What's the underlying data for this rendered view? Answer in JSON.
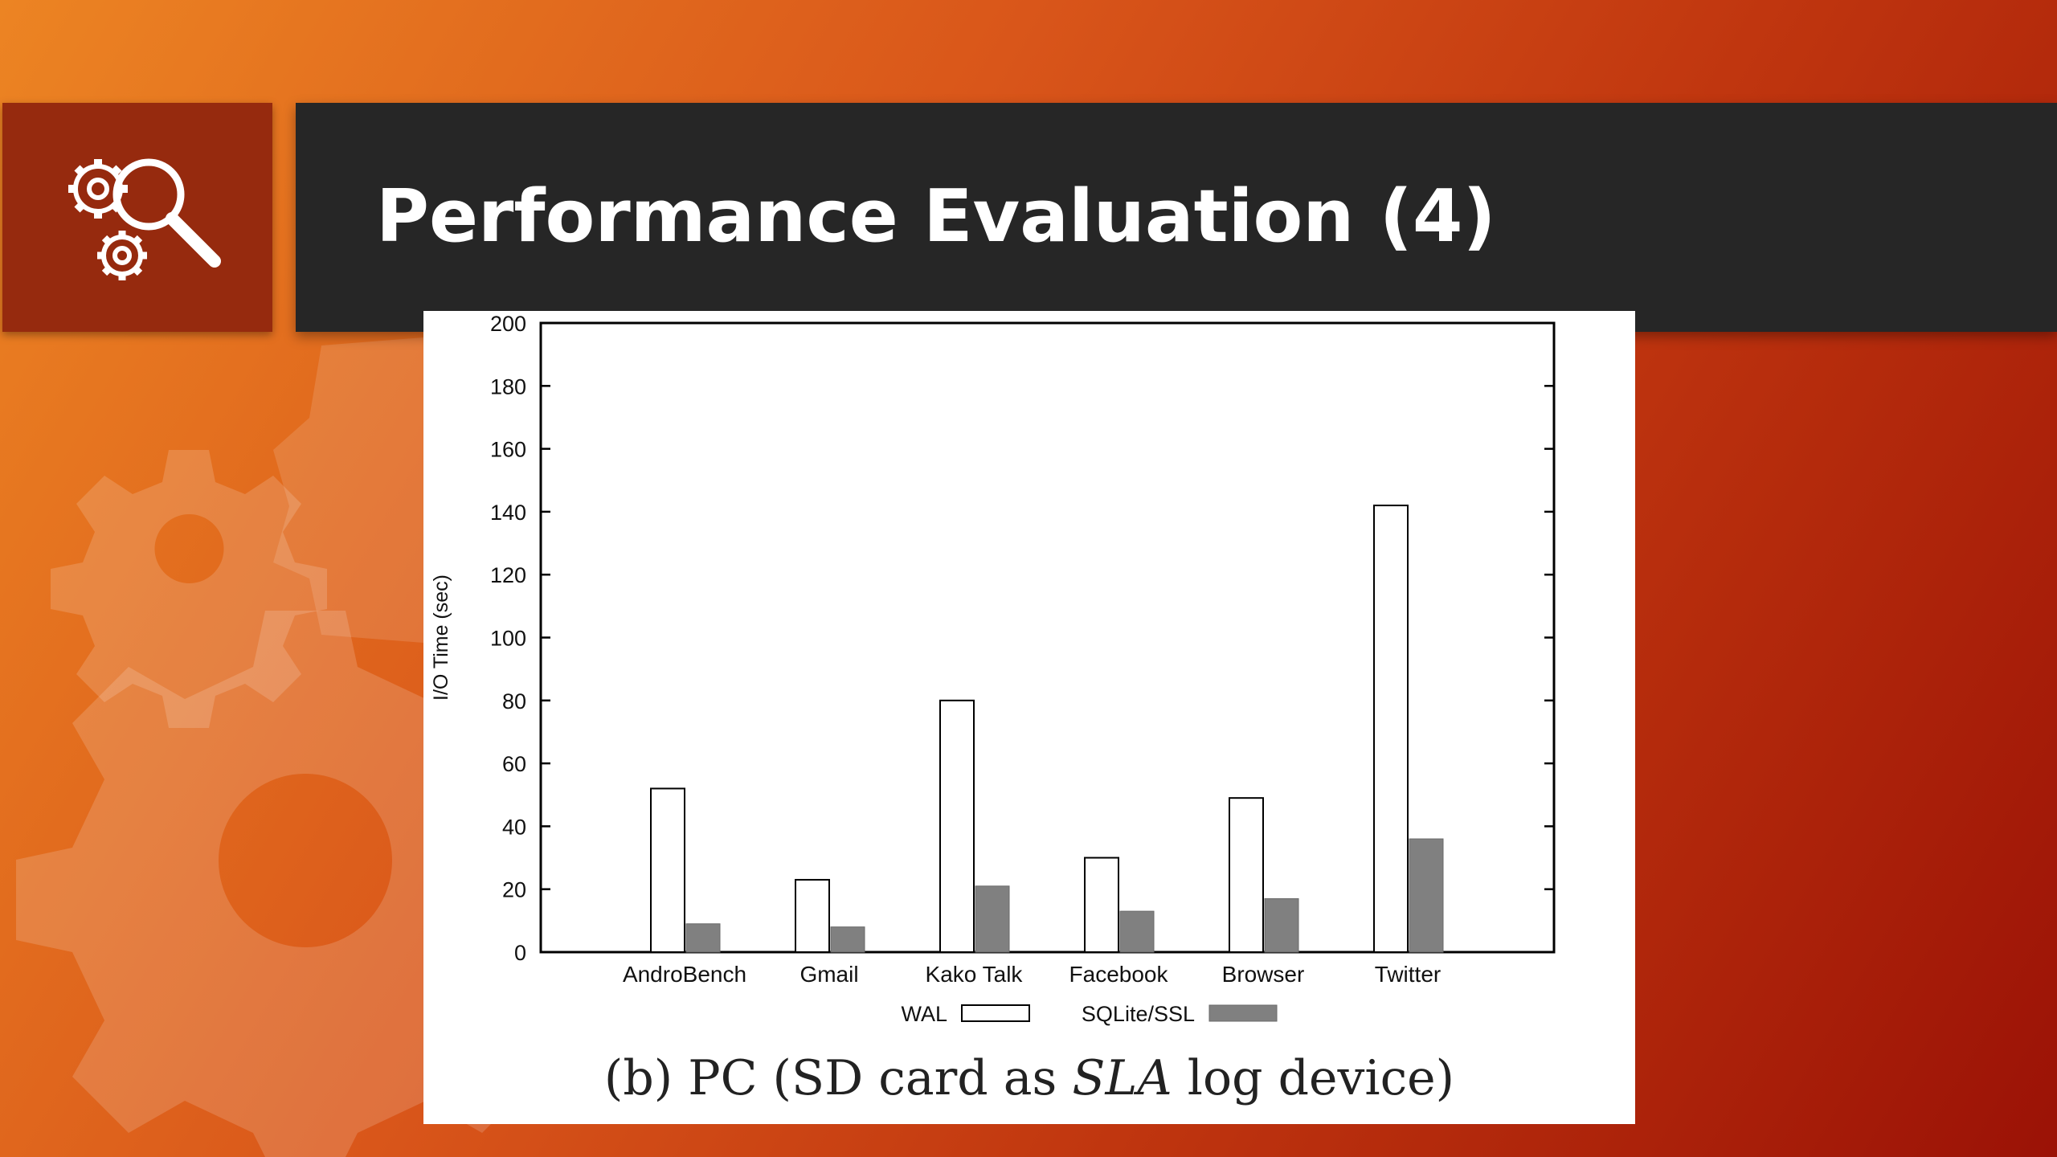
{
  "slide": {
    "title": "Performance Evaluation (4)",
    "icon": "gears-magnifier-icon"
  },
  "caption": {
    "prefix": "(b) PC (SD card as ",
    "emphasis": "SLA",
    "suffix": " log device)"
  },
  "colors": {
    "background_start": "#ec8423",
    "background_end": "#9b1206",
    "title_bar": "#262626",
    "icon_box": "#962a0e",
    "wal_fill": "#ffffff",
    "sqlite_fill": "#808080"
  },
  "chart_data": {
    "type": "bar",
    "categories": [
      "AndroBench",
      "Gmail",
      "Kako Talk",
      "Facebook",
      "Browser",
      "Twitter"
    ],
    "series": [
      {
        "name": "WAL",
        "values": [
          52,
          23,
          80,
          30,
          49,
          142
        ]
      },
      {
        "name": "SQLite/SSL",
        "values": [
          9,
          8,
          21,
          13,
          17,
          36
        ]
      }
    ],
    "ylabel": "I/O Time (sec)",
    "ylim": [
      0,
      200
    ],
    "yticks": [
      0,
      20,
      40,
      60,
      80,
      100,
      120,
      140,
      160,
      180,
      200
    ],
    "grid": false,
    "legend": "bottom"
  }
}
